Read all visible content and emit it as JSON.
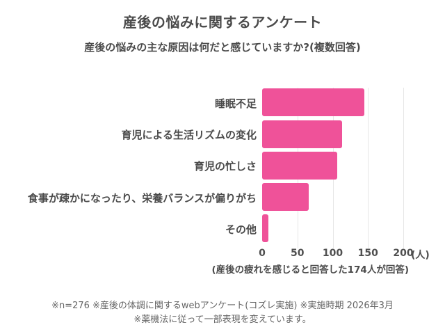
{
  "chart_data": {
    "type": "bar",
    "orientation": "horizontal",
    "title": "産後の悩みに関するアンケート",
    "subtitle": "産後の悩みの主な原因は何だと感じていますか?(複数回答)",
    "categories": [
      "睡眠不足",
      "育児による生活リズムの変化",
      "育児の忙しさ",
      "食事が疎かになったり、栄養バランスが偏りがち",
      "その他"
    ],
    "values": [
      145,
      113,
      106,
      66,
      9
    ],
    "xlim": [
      0,
      200
    ],
    "x_ticks": [
      0,
      50,
      100,
      150,
      200
    ],
    "x_unit": "(人)",
    "grid": true,
    "legend": false,
    "bar_color": "#EF5299",
    "gridline_color": "#e7e7e7",
    "note": "(産後の疲れを感じると回答した174人が回答)"
  },
  "footer": {
    "line1": "※n=276 ※産後の体調に関するwebアンケート(コズレ実施) ※実施時期 2026年3月",
    "line2": "※薬機法に従って一部表現を変えています。"
  }
}
